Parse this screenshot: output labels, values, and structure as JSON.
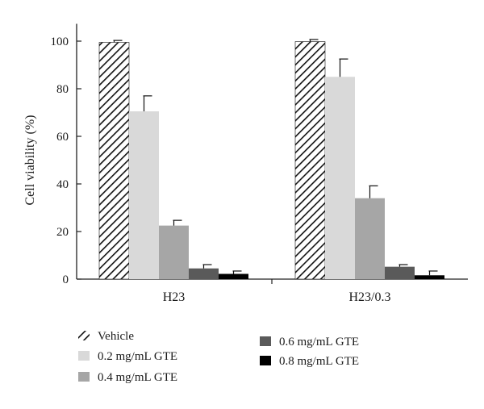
{
  "chart_data": {
    "type": "bar",
    "categories": [
      "H23",
      "H23/0.3"
    ],
    "ylabel": "Cell viability (%)",
    "xlabel": "",
    "ylim": [
      0,
      110
    ],
    "yticks": [
      0,
      20,
      40,
      60,
      80,
      100
    ],
    "grid": false,
    "legend_position": "bottom",
    "series": [
      {
        "name": "Vehicle",
        "color": "#ffffff",
        "pattern": "hatch",
        "values": [
          99.5,
          99.8
        ],
        "errors": [
          0.8,
          0.9
        ]
      },
      {
        "name": "0.2 mg/mL GTE",
        "color": "#d9d9d9",
        "values": [
          70.5,
          85
        ],
        "errors": [
          6.5,
          7.5
        ]
      },
      {
        "name": "0.4 mg/mL GTE",
        "color": "#a6a6a6",
        "values": [
          22.5,
          34
        ],
        "errors": [
          2.2,
          5.2
        ]
      },
      {
        "name": "0.6 mg/mL GTE",
        "color": "#5a5a5a",
        "values": [
          4.5,
          5.2
        ],
        "errors": [
          1.6,
          0.9
        ]
      },
      {
        "name": "0.8 mg/mL GTE",
        "color": "#000000",
        "values": [
          2.2,
          1.6
        ],
        "errors": [
          1.2,
          1.8
        ]
      }
    ]
  }
}
